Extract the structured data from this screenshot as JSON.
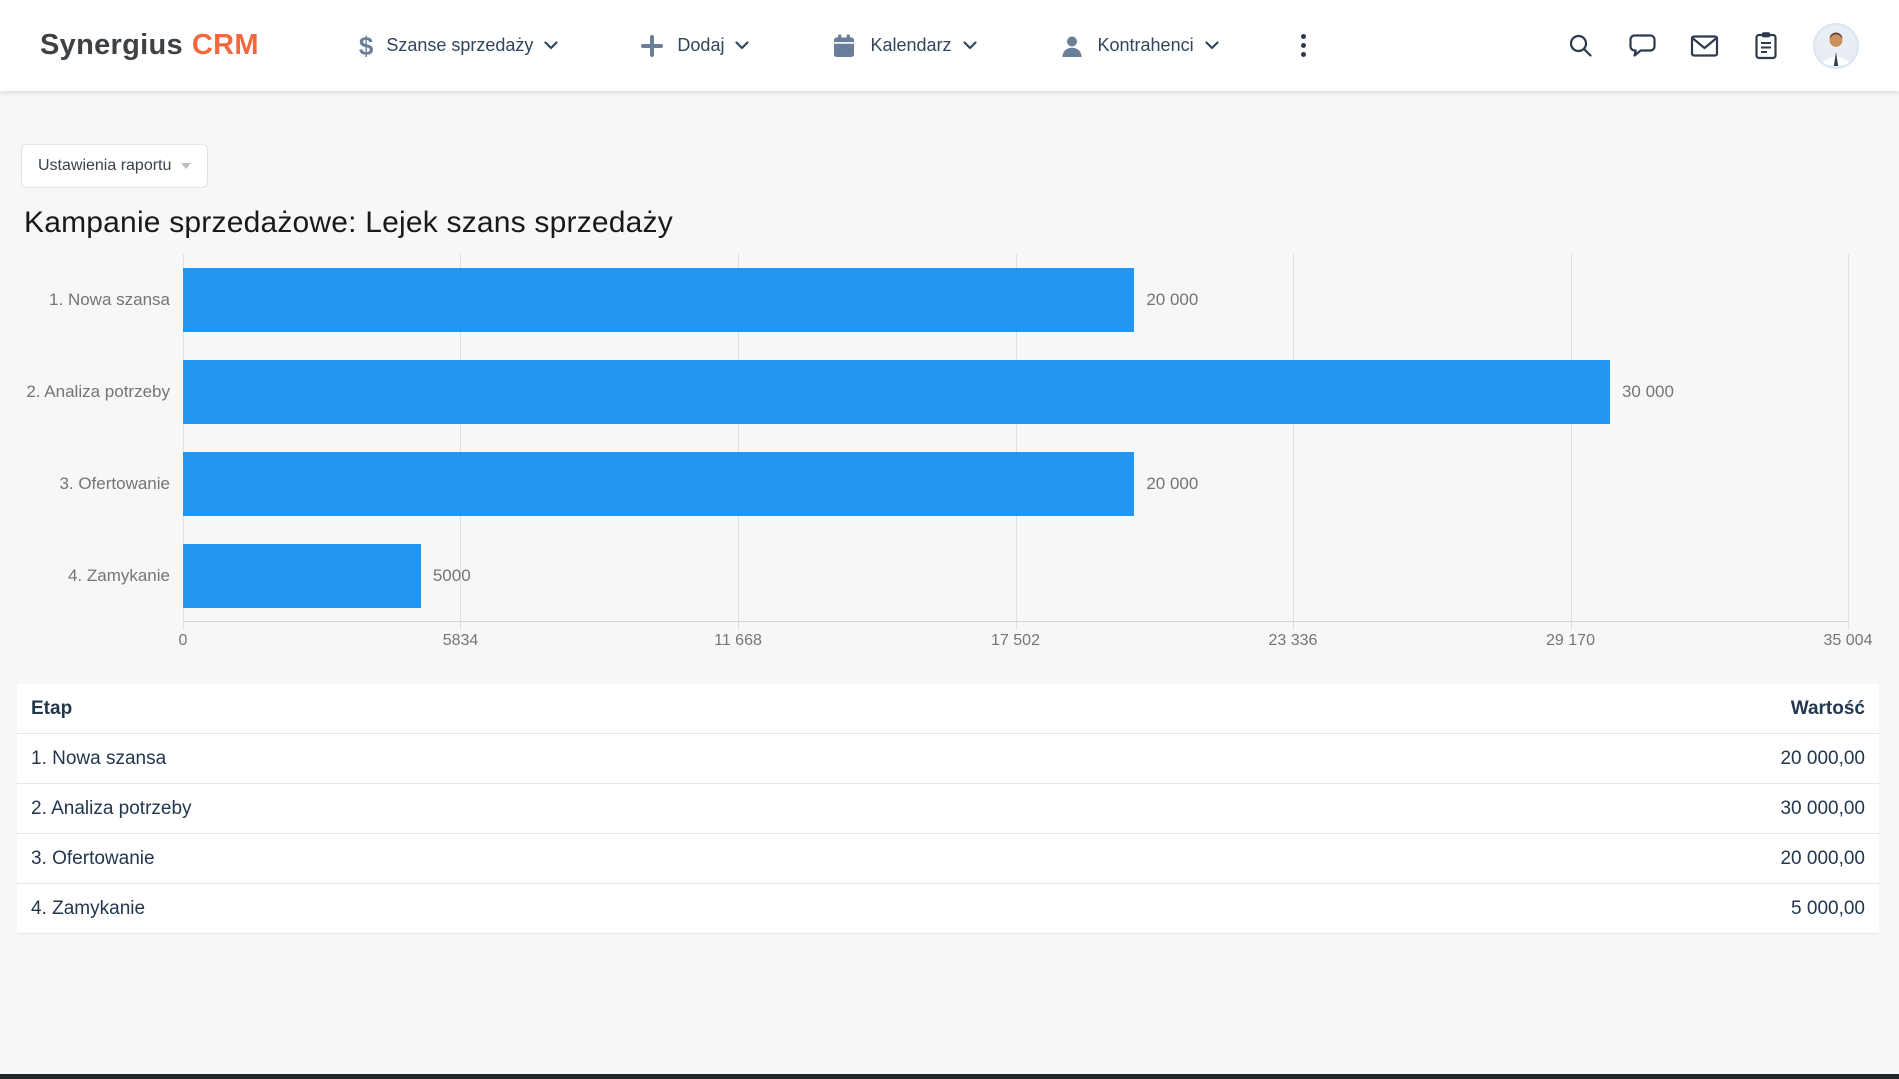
{
  "nav": {
    "brand": {
      "name": "Synergius",
      "suffix": "CRM"
    },
    "items": [
      {
        "label": "Szanse sprzedaży",
        "icon": "dollar-icon"
      },
      {
        "label": "Dodaj",
        "icon": "plus-icon"
      },
      {
        "label": "Kalendarz",
        "icon": "calendar-icon"
      },
      {
        "label": "Kontrahenci",
        "icon": "person-icon"
      }
    ],
    "more_menu_icon": "kebab-icon",
    "right_icons": [
      "search-icon",
      "chat-icon",
      "mail-icon",
      "clipboard-icon"
    ],
    "avatar": "user-avatar"
  },
  "toolbar": {
    "report_settings_label": "Ustawienia raportu"
  },
  "page": {
    "title": "Kampanie sprzedażowe: Lejek szans sprzedaży"
  },
  "chart_data": {
    "type": "bar",
    "orientation": "horizontal",
    "title": "Kampanie sprzedażowe: Lejek szans sprzedaży",
    "categories": [
      "1. Nowa szansa",
      "2. Analiza potrzeby",
      "3. Ofertowanie",
      "4. Zamykanie"
    ],
    "values": [
      20000,
      30000,
      20000,
      5000
    ],
    "value_labels": [
      "20 000",
      "30 000",
      "20 000",
      "5000"
    ],
    "xlim": [
      0,
      35004
    ],
    "x_tick_values": [
      0,
      5834,
      11668,
      17502,
      23336,
      29170,
      35004
    ],
    "x_tick_labels": [
      "0",
      "5834",
      "11 668",
      "17 502",
      "23 336",
      "29 170",
      "35 004"
    ],
    "bar_color": "#2196f3",
    "grid": true,
    "legend": "none"
  },
  "table": {
    "headers": [
      "Etap",
      "Wartość"
    ],
    "rows": [
      {
        "etap": "1. Nowa szansa",
        "wartosc": "20 000,00"
      },
      {
        "etap": "2. Analiza potrzeby",
        "wartosc": "30 000,00"
      },
      {
        "etap": "3. Ofertowanie",
        "wartosc": "20 000,00"
      },
      {
        "etap": "4. Zamykanie",
        "wartosc": "5 000,00"
      }
    ]
  },
  "colors": {
    "brand_orange": "#f3683e",
    "bar_blue": "#2196f3",
    "nav_icon_slate": "#687e99",
    "nav_icon_dark": "#2c3a4d",
    "chart_text_gray": "#757575",
    "page_background": "#f7f7f8"
  }
}
